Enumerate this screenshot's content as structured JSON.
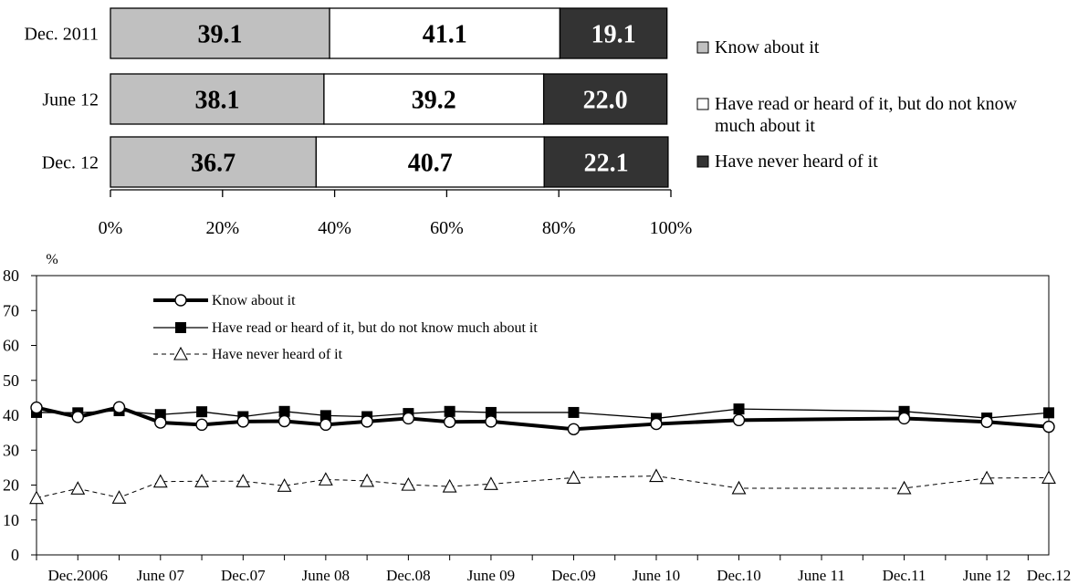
{
  "chart_data": [
    {
      "type": "bar",
      "orientation": "horizontal",
      "stacked": true,
      "categories": [
        "Dec. 2011",
        "June 12",
        "Dec. 12"
      ],
      "series": [
        {
          "name": "Know about it",
          "values": [
            39.1,
            38.1,
            36.7
          ],
          "color": "#c0c0c0"
        },
        {
          "name": "Have read or heard of it, but do not know much about it",
          "values": [
            41.1,
            39.2,
            40.7
          ],
          "color": "#ffffff"
        },
        {
          "name": "Have never heard of it",
          "values": [
            19.1,
            22.0,
            22.1
          ],
          "color": "#333333"
        }
      ],
      "xlim": [
        0,
        100
      ],
      "xticks": [
        "0%",
        "20%",
        "40%",
        "60%",
        "80%",
        "100%"
      ],
      "legend_position": "right",
      "legend": [
        {
          "line1": "Know about it"
        },
        {
          "line1": "Have read or heard of it, but do not know",
          "line2": "much about it"
        },
        {
          "line1": "Have never heard of it"
        }
      ]
    },
    {
      "type": "line",
      "ylabel": "%",
      "ylim": [
        0,
        80
      ],
      "yticks": [
        0,
        10,
        20,
        30,
        40,
        50,
        60,
        70,
        80
      ],
      "grid": false,
      "legend_position": "top-left",
      "x_labels": [
        "Dec.2006",
        "June 07",
        "Dec.07",
        "June 08",
        "Dec.08",
        "June 09",
        "Dec.09",
        "June 10",
        "Dec.10",
        "June 11",
        "Dec.11",
        "June 12",
        "Dec.12"
      ],
      "x_label_positions": [
        1,
        3,
        5,
        7,
        9,
        11,
        13,
        15,
        17,
        19,
        21,
        23,
        24.5
      ],
      "x": [
        0,
        1,
        2,
        3,
        4,
        5,
        6,
        7,
        8,
        9,
        10,
        11,
        13,
        15,
        17,
        21,
        23,
        24.5
      ],
      "series": [
        {
          "name": "Know about it",
          "style": "thick-circle",
          "values": [
            42.2,
            39.5,
            42.3,
            37.9,
            37.3,
            38.2,
            38.3,
            37.3,
            38.2,
            39.1,
            38.1,
            38.2,
            36.0,
            37.5,
            38.6,
            39.1,
            38.1,
            36.7
          ]
        },
        {
          "name": "Have read or heard of it, but do not know much about it",
          "style": "thin-square",
          "values": [
            40.8,
            40.7,
            41.3,
            40.2,
            41.0,
            39.6,
            41.1,
            39.9,
            39.6,
            40.5,
            41.1,
            40.8,
            40.8,
            39.1,
            41.8,
            41.1,
            39.2,
            40.7
          ]
        },
        {
          "name": "Have never heard of it",
          "style": "dashed-triangle",
          "values": [
            16.3,
            19.0,
            16.4,
            21.0,
            21.1,
            21.1,
            19.8,
            21.6,
            21.2,
            20.1,
            19.6,
            20.3,
            22.1,
            22.6,
            19.1,
            19.1,
            22.0,
            22.1
          ]
        }
      ]
    }
  ]
}
